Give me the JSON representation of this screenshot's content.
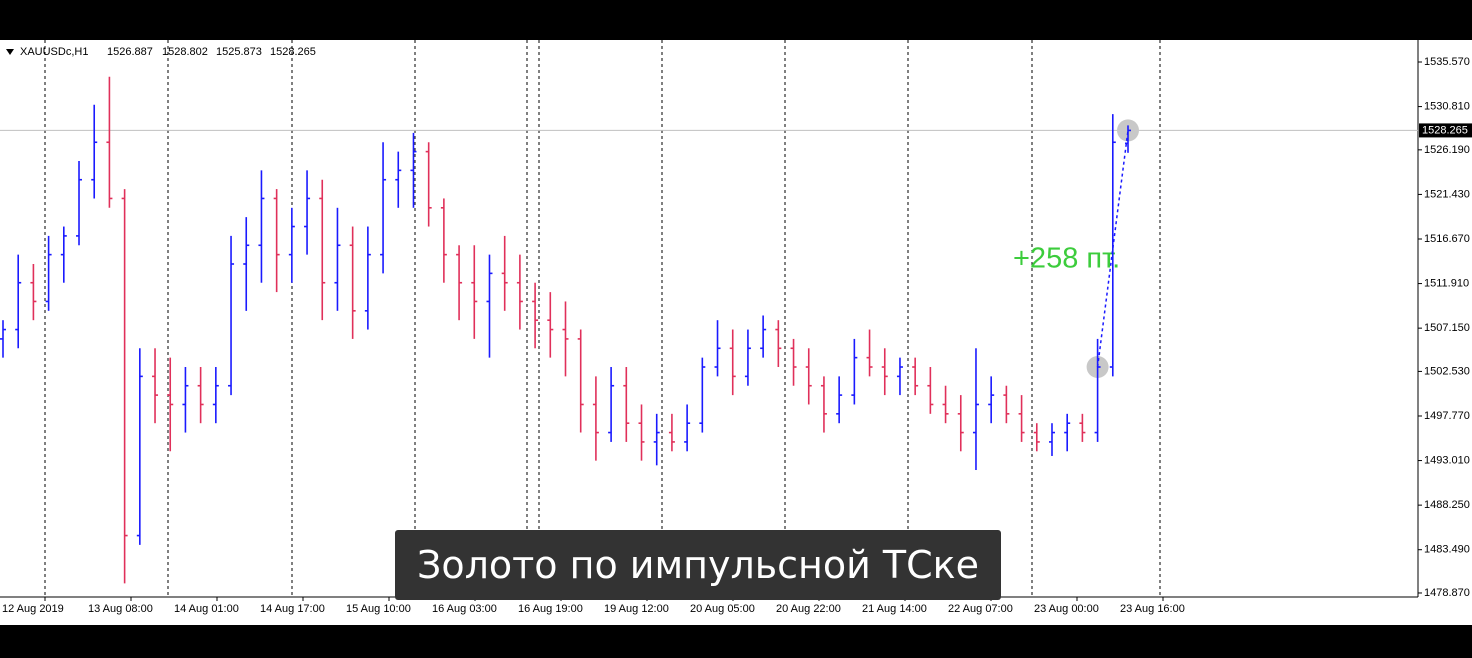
{
  "chart_data": {
    "type": "ohlc",
    "symbol": "XAUUSDc,H1",
    "ylim": [
      1478.44,
      1537.92
    ],
    "yticks": [
      {
        "value": 1535.57,
        "label": "1535.570"
      },
      {
        "value": 1530.81,
        "label": "1530.810"
      },
      {
        "value": 1526.19,
        "label": "1526.190"
      },
      {
        "value": 1521.43,
        "label": "1521.430"
      },
      {
        "value": 1516.67,
        "label": "1516.670"
      },
      {
        "value": 1511.91,
        "label": "1511.910"
      },
      {
        "value": 1507.15,
        "label": "1507.150"
      },
      {
        "value": 1502.53,
        "label": "1502.530"
      },
      {
        "value": 1497.77,
        "label": "1497.770"
      },
      {
        "value": 1493.01,
        "label": "1493.010"
      },
      {
        "value": 1488.25,
        "label": "1488.250"
      },
      {
        "value": 1483.49,
        "label": "1483.490"
      },
      {
        "value": 1478.87,
        "label": "1478.870"
      }
    ],
    "x_labels": [
      "12 Aug 2019",
      "13 Aug 08:00",
      "14 Aug 01:00",
      "14 Aug 17:00",
      "15 Aug 10:00",
      "16 Aug 03:00",
      "16 Aug 19:00",
      "19 Aug 12:00",
      "20 Aug 05:00",
      "20 Aug 22:00",
      "21 Aug 14:00",
      "22 Aug 07:00",
      "23 Aug 00:00",
      "23 Aug 16:00"
    ],
    "up_color": "#1a1aff",
    "down_color": "#e0305a",
    "bars": [
      [
        1506,
        1508,
        1504,
        1507
      ],
      [
        1507,
        1515,
        1505,
        1512
      ],
      [
        1512,
        1514,
        1508,
        1510
      ],
      [
        1510,
        1517,
        1509,
        1515
      ],
      [
        1515,
        1518,
        1512,
        1517
      ],
      [
        1517,
        1525,
        1516,
        1523
      ],
      [
        1523,
        1531,
        1521,
        1527
      ],
      [
        1527,
        1534,
        1520,
        1521
      ],
      [
        1521,
        1522,
        1479.9,
        1485
      ],
      [
        1485,
        1505,
        1484,
        1502
      ],
      [
        1502,
        1505,
        1497,
        1500
      ],
      [
        1500,
        1504,
        1494,
        1499
      ],
      [
        1499,
        1503,
        1496,
        1501
      ],
      [
        1501,
        1503,
        1497,
        1499
      ],
      [
        1499,
        1503,
        1497,
        1501
      ],
      [
        1501,
        1517,
        1500,
        1514
      ],
      [
        1514,
        1519,
        1509,
        1516
      ],
      [
        1516,
        1524,
        1512,
        1521
      ],
      [
        1521,
        1522,
        1511,
        1515
      ],
      [
        1515,
        1520,
        1512,
        1518
      ],
      [
        1518,
        1524,
        1515,
        1521
      ],
      [
        1521,
        1523,
        1508,
        1512
      ],
      [
        1512,
        1520,
        1509,
        1516
      ],
      [
        1516,
        1518,
        1506,
        1509
      ],
      [
        1509,
        1518,
        1507,
        1515
      ],
      [
        1515,
        1527,
        1513,
        1523
      ],
      [
        1523,
        1526,
        1520,
        1524
      ],
      [
        1524,
        1528,
        1520,
        1526
      ],
      [
        1526,
        1527,
        1518,
        1520
      ],
      [
        1520,
        1521,
        1512,
        1515
      ],
      [
        1515,
        1516,
        1508,
        1512
      ],
      [
        1512,
        1516,
        1506,
        1510
      ],
      [
        1510,
        1515,
        1504,
        1513
      ],
      [
        1513,
        1517,
        1509,
        1512
      ],
      [
        1512,
        1515,
        1507,
        1510
      ],
      [
        1510,
        1512,
        1505,
        1508
      ],
      [
        1508,
        1511,
        1504,
        1507
      ],
      [
        1507,
        1510,
        1502,
        1506
      ],
      [
        1506,
        1507,
        1496,
        1499
      ],
      [
        1499,
        1502,
        1493,
        1496
      ],
      [
        1496,
        1503,
        1495,
        1501
      ],
      [
        1501,
        1503,
        1495,
        1497
      ],
      [
        1497,
        1499,
        1493,
        1495
      ],
      [
        1495,
        1498,
        1492.5,
        1496
      ],
      [
        1496,
        1498,
        1494,
        1495
      ],
      [
        1495,
        1499,
        1494,
        1497
      ],
      [
        1497,
        1504,
        1496,
        1503
      ],
      [
        1503,
        1508,
        1502,
        1505
      ],
      [
        1505,
        1507,
        1500,
        1502
      ],
      [
        1502,
        1507,
        1501,
        1505
      ],
      [
        1505,
        1508.5,
        1504,
        1507
      ],
      [
        1507,
        1508,
        1503,
        1505
      ],
      [
        1505,
        1506,
        1501,
        1503
      ],
      [
        1503,
        1505,
        1499,
        1501
      ],
      [
        1501,
        1502,
        1496,
        1498
      ],
      [
        1498,
        1502,
        1497,
        1500
      ],
      [
        1500,
        1506,
        1499,
        1504
      ],
      [
        1504,
        1507,
        1502,
        1503
      ],
      [
        1503,
        1505,
        1500,
        1502
      ],
      [
        1502,
        1504,
        1500,
        1503
      ],
      [
        1503,
        1504,
        1500,
        1501
      ],
      [
        1501,
        1503,
        1498,
        1499
      ],
      [
        1499,
        1501,
        1497,
        1498
      ],
      [
        1498,
        1500,
        1494,
        1496
      ],
      [
        1496,
        1505,
        1492,
        1499
      ],
      [
        1499,
        1502,
        1497,
        1500
      ],
      [
        1500,
        1501,
        1497,
        1498
      ],
      [
        1498,
        1500,
        1495,
        1496
      ],
      [
        1496,
        1497,
        1494,
        1495
      ],
      [
        1495,
        1497,
        1493.5,
        1496
      ],
      [
        1496,
        1498,
        1494,
        1497
      ],
      [
        1497,
        1498,
        1495,
        1496
      ],
      [
        1496,
        1506,
        1495,
        1503
      ],
      [
        1503,
        1530,
        1502,
        1527
      ],
      [
        1526.887,
        1528.802,
        1525.873,
        1528.265
      ]
    ],
    "annotation": "+258 пт."
  },
  "caption": "Золото по импульсной ТСке"
}
